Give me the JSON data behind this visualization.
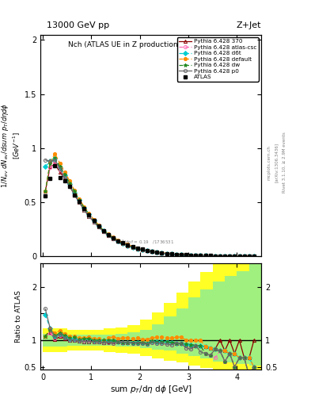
{
  "title_top": "13000 GeV pp",
  "title_right": "Z+Jet",
  "plot_title": "Nch (ATLAS UE in Z production)",
  "xlabel": "sum p_{T}/d\\eta d\\phi [GeV]",
  "ylabel_main": "1/N_{ev} dN_{ev}/dsum p_{T}/d\\eta d\\phi [GeV^{-1}]",
  "ratio_ylabel": "Ratio to ATLAS",
  "right_label": "Rivet 3.1.10, ≥ 2.9M events",
  "arxiv_label": "[arXiv:1306.3436]",
  "mcplots_label": "mcplots.cern.ch",
  "x_data": [
    0.05,
    0.15,
    0.25,
    0.35,
    0.45,
    0.55,
    0.65,
    0.75,
    0.85,
    0.95,
    1.05,
    1.15,
    1.25,
    1.35,
    1.45,
    1.55,
    1.65,
    1.75,
    1.85,
    1.95,
    2.05,
    2.15,
    2.25,
    2.35,
    2.45,
    2.55,
    2.65,
    2.75,
    2.85,
    2.95,
    3.05,
    3.15,
    3.25,
    3.35,
    3.45,
    3.55,
    3.65,
    3.75,
    3.85,
    3.95,
    4.05,
    4.15,
    4.25,
    4.35
  ],
  "atlas_y": [
    0.56,
    0.72,
    0.84,
    0.73,
    0.7,
    0.65,
    0.57,
    0.51,
    0.44,
    0.38,
    0.33,
    0.28,
    0.24,
    0.2,
    0.17,
    0.145,
    0.125,
    0.105,
    0.09,
    0.075,
    0.065,
    0.055,
    0.045,
    0.038,
    0.032,
    0.027,
    0.023,
    0.019,
    0.016,
    0.014,
    0.012,
    0.01,
    0.009,
    0.008,
    0.007,
    0.006,
    0.005,
    0.005,
    0.004,
    0.004,
    0.003,
    0.003,
    0.003,
    0.002
  ],
  "p370_y": [
    0.6,
    0.83,
    0.85,
    0.78,
    0.72,
    0.65,
    0.57,
    0.5,
    0.43,
    0.37,
    0.32,
    0.27,
    0.23,
    0.195,
    0.165,
    0.14,
    0.12,
    0.1,
    0.086,
    0.072,
    0.062,
    0.052,
    0.044,
    0.037,
    0.031,
    0.026,
    0.022,
    0.018,
    0.015,
    0.013,
    0.011,
    0.009,
    0.008,
    0.007,
    0.006,
    0.005,
    0.005,
    0.004,
    0.004,
    0.003,
    0.003,
    0.002,
    0.002,
    0.002
  ],
  "atlas_csc_y": [
    0.6,
    0.82,
    0.87,
    0.8,
    0.73,
    0.66,
    0.58,
    0.51,
    0.44,
    0.38,
    0.32,
    0.27,
    0.23,
    0.19,
    0.16,
    0.14,
    0.12,
    0.1,
    0.085,
    0.071,
    0.061,
    0.051,
    0.043,
    0.036,
    0.03,
    0.025,
    0.021,
    0.018,
    0.015,
    0.012,
    0.01,
    0.009,
    0.008,
    0.006,
    0.005,
    0.004,
    0.004,
    0.003,
    0.003,
    0.002,
    0.002,
    0.002,
    0.001,
    0.001
  ],
  "d6t_y": [
    0.83,
    0.88,
    0.9,
    0.82,
    0.75,
    0.67,
    0.59,
    0.52,
    0.45,
    0.39,
    0.33,
    0.28,
    0.24,
    0.2,
    0.17,
    0.14,
    0.12,
    0.1,
    0.086,
    0.072,
    0.062,
    0.052,
    0.044,
    0.037,
    0.031,
    0.026,
    0.022,
    0.018,
    0.015,
    0.013,
    0.011,
    0.009,
    0.008,
    0.007,
    0.006,
    0.005,
    0.004,
    0.004,
    0.003,
    0.003,
    0.002,
    0.002,
    0.002,
    0.001
  ],
  "default_y": [
    0.6,
    0.87,
    0.95,
    0.86,
    0.78,
    0.7,
    0.61,
    0.53,
    0.46,
    0.4,
    0.34,
    0.29,
    0.24,
    0.21,
    0.18,
    0.15,
    0.13,
    0.11,
    0.093,
    0.078,
    0.066,
    0.056,
    0.047,
    0.04,
    0.034,
    0.028,
    0.024,
    0.02,
    0.017,
    0.014,
    0.012,
    0.01,
    0.009,
    0.007,
    0.006,
    0.005,
    0.004,
    0.004,
    0.003,
    0.003,
    0.002,
    0.002,
    0.002,
    0.001
  ],
  "dw_y": [
    0.6,
    0.86,
    0.91,
    0.83,
    0.76,
    0.68,
    0.6,
    0.52,
    0.45,
    0.39,
    0.33,
    0.28,
    0.24,
    0.2,
    0.17,
    0.14,
    0.12,
    0.1,
    0.086,
    0.072,
    0.062,
    0.052,
    0.044,
    0.037,
    0.031,
    0.026,
    0.022,
    0.018,
    0.015,
    0.013,
    0.011,
    0.009,
    0.008,
    0.006,
    0.005,
    0.005,
    0.004,
    0.003,
    0.003,
    0.002,
    0.002,
    0.002,
    0.001,
    0.001
  ],
  "p0_y": [
    0.89,
    0.88,
    0.89,
    0.81,
    0.73,
    0.65,
    0.57,
    0.5,
    0.43,
    0.37,
    0.32,
    0.27,
    0.23,
    0.19,
    0.16,
    0.14,
    0.12,
    0.1,
    0.085,
    0.071,
    0.061,
    0.051,
    0.043,
    0.036,
    0.03,
    0.025,
    0.021,
    0.018,
    0.015,
    0.012,
    0.01,
    0.009,
    0.007,
    0.006,
    0.005,
    0.005,
    0.004,
    0.003,
    0.003,
    0.002,
    0.002,
    0.002,
    0.001,
    0.001
  ],
  "band_x_edges": [
    0.0,
    0.25,
    0.5,
    0.75,
    1.0,
    1.25,
    1.5,
    1.75,
    2.0,
    2.25,
    2.5,
    2.75,
    3.0,
    3.25,
    3.5,
    3.75,
    4.0,
    4.25,
    4.5
  ],
  "band_green_low": [
    0.88,
    0.88,
    0.9,
    0.9,
    0.9,
    0.9,
    0.88,
    0.88,
    0.85,
    0.82,
    0.8,
    0.75,
    0.7,
    0.65,
    0.6,
    0.58,
    0.55,
    0.52
  ],
  "band_green_high": [
    1.12,
    1.12,
    1.1,
    1.1,
    1.1,
    1.1,
    1.12,
    1.15,
    1.2,
    1.3,
    1.45,
    1.6,
    1.8,
    1.95,
    2.1,
    2.2,
    2.3,
    2.45
  ],
  "band_yellow_low": [
    0.78,
    0.78,
    0.8,
    0.8,
    0.8,
    0.78,
    0.76,
    0.74,
    0.7,
    0.65,
    0.62,
    0.58,
    0.53,
    0.48,
    0.44,
    0.42,
    0.39,
    0.37
  ],
  "band_yellow_high": [
    1.22,
    1.22,
    1.2,
    1.2,
    1.2,
    1.22,
    1.24,
    1.28,
    1.38,
    1.52,
    1.7,
    1.9,
    2.1,
    2.28,
    2.45,
    2.58,
    2.68,
    2.8
  ],
  "colors": {
    "atlas": "#000000",
    "p370": "#8b0000",
    "atlas_csc": "#ff69b4",
    "d6t": "#00ced1",
    "default": "#ff8c00",
    "dw": "#228b22",
    "p0": "#696969"
  },
  "xlim": [
    -0.05,
    4.5
  ],
  "ylim_main": [
    0.0,
    2.0
  ],
  "ylim_ratio": [
    0.45,
    2.45
  ]
}
